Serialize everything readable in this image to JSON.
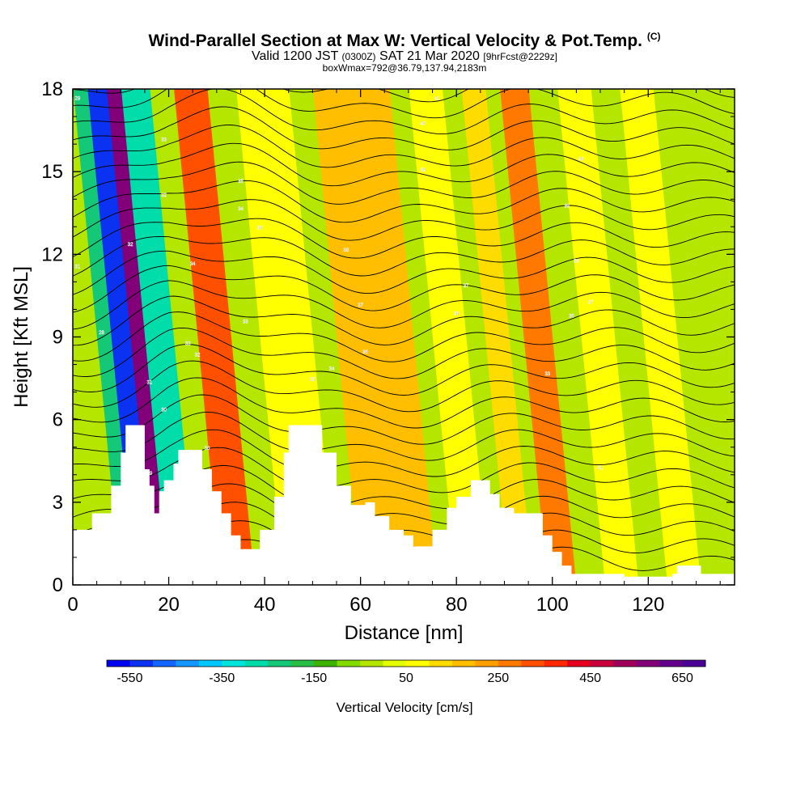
{
  "titles": {
    "main": "Wind-Parallel Section at Max W: Vertical Velocity & Pot.Temp.",
    "main_tag": "(C)",
    "valid_a": "Valid 1200 JST",
    "valid_b": "(0300Z)",
    "valid_c": "SAT 21 Mar 2020",
    "valid_d": "[9hrFcst@2229z]",
    "sub": "boxWmax=792@36.79,137.94,2183m"
  },
  "chart_data": {
    "type": "heatmap",
    "xlabel": "Distance [nm]",
    "ylabel": "Height [Kft MSL]",
    "xlim": [
      0,
      138
    ],
    "ylim": [
      0,
      18
    ],
    "x_ticks": [
      "0",
      "20",
      "40",
      "60",
      "80",
      "100",
      "120"
    ],
    "y_ticks": [
      "0",
      "3",
      "6",
      "9",
      "12",
      "15",
      "18"
    ],
    "colorbar": {
      "label": "Vertical Velocity [cm/s]",
      "min": -600,
      "max": 700,
      "step": 50,
      "tick_labels": [
        "-550",
        "-350",
        "-150",
        "50",
        "250",
        "450",
        "650"
      ],
      "colors": [
        "#0000f0",
        "#0a32f0",
        "#1464ff",
        "#1496ff",
        "#00c8ff",
        "#00e6dc",
        "#00dcaa",
        "#14c878",
        "#28be46",
        "#3cb400",
        "#82dc00",
        "#b4e600",
        "#e6ff00",
        "#ffff00",
        "#ffdc00",
        "#ffbe00",
        "#ffa000",
        "#ff7800",
        "#ff5000",
        "#ff2800",
        "#e6001e",
        "#c8003c",
        "#a0005a",
        "#820078",
        "#64008c",
        "#4b0096"
      ]
    },
    "terrain_kft": [
      [
        0,
        2.0
      ],
      [
        4,
        2.6
      ],
      [
        8,
        3.6
      ],
      [
        10,
        4.8
      ],
      [
        11,
        5.8
      ],
      [
        14,
        5.8
      ],
      [
        15,
        4.2
      ],
      [
        16,
        3.6
      ],
      [
        17,
        2.6
      ],
      [
        18,
        3.4
      ],
      [
        19,
        3.8
      ],
      [
        21,
        4.4
      ],
      [
        22,
        4.9
      ],
      [
        25,
        4.9
      ],
      [
        27,
        4.2
      ],
      [
        29,
        3.4
      ],
      [
        31,
        2.6
      ],
      [
        33,
        1.8
      ],
      [
        35,
        1.3
      ],
      [
        38,
        1.3
      ],
      [
        39,
        2.0
      ],
      [
        42,
        3.2
      ],
      [
        44,
        4.8
      ],
      [
        45,
        5.8
      ],
      [
        49,
        5.8
      ],
      [
        52,
        4.8
      ],
      [
        55,
        3.6
      ],
      [
        58,
        2.9
      ],
      [
        61,
        3.0
      ],
      [
        63,
        2.5
      ],
      [
        66,
        2.0
      ],
      [
        69,
        1.8
      ],
      [
        71,
        1.4
      ],
      [
        73,
        1.4
      ],
      [
        75,
        2.0
      ],
      [
        78,
        2.8
      ],
      [
        80,
        3.2
      ],
      [
        83,
        3.8
      ],
      [
        85,
        3.8
      ],
      [
        87,
        3.3
      ],
      [
        89,
        2.8
      ],
      [
        92,
        2.6
      ],
      [
        95,
        2.6
      ],
      [
        98,
        1.8
      ],
      [
        100,
        1.2
      ],
      [
        102,
        0.7
      ],
      [
        104,
        0.4
      ],
      [
        115,
        0.3
      ],
      [
        125,
        0.4
      ],
      [
        126,
        0.7
      ],
      [
        130,
        0.7
      ],
      [
        131,
        0.4
      ],
      [
        138,
        0.4
      ]
    ],
    "updraft_bands": [
      {
        "x0": 2,
        "x1": 19,
        "w": -50
      },
      {
        "x0": 10,
        "x1": 19,
        "w": -250
      },
      {
        "x0": 13,
        "x1": 18,
        "w": -550
      },
      {
        "x0": 17,
        "x1": 21,
        "w": 550
      },
      {
        "x0": 20,
        "x1": 26,
        "w": -300
      },
      {
        "x0": 31,
        "x1": 38,
        "w": 300
      },
      {
        "x0": 44,
        "x1": 55,
        "w": 50
      },
      {
        "x0": 60,
        "x1": 76,
        "w": 150
      },
      {
        "x0": 80,
        "x1": 87,
        "w": 50
      },
      {
        "x0": 91,
        "x1": 96,
        "w": 100
      },
      {
        "x0": 99,
        "x1": 105,
        "w": 250
      },
      {
        "x0": 111,
        "x1": 118,
        "w": 50
      },
      {
        "x0": 124,
        "x1": 131,
        "w": 50
      }
    ],
    "theta_contours_K": [
      {
        "value": "29",
        "x": 1,
        "y": 17.6
      },
      {
        "value": "31",
        "x": 1,
        "y": 11.5
      },
      {
        "value": "28",
        "x": 6,
        "y": 9.1
      },
      {
        "value": "32",
        "x": 12,
        "y": 12.3
      },
      {
        "value": "33",
        "x": 19,
        "y": 16.1
      },
      {
        "value": "32",
        "x": 19,
        "y": 14.1
      },
      {
        "value": "31",
        "x": 16,
        "y": 7.3
      },
      {
        "value": "30",
        "x": 19,
        "y": 6.3
      },
      {
        "value": "29",
        "x": 16,
        "y": 4.0
      },
      {
        "value": "34",
        "x": 25,
        "y": 11.6
      },
      {
        "value": "33",
        "x": 24,
        "y": 8.7
      },
      {
        "value": "32",
        "x": 26,
        "y": 8.3
      },
      {
        "value": "30",
        "x": 28,
        "y": 4.9
      },
      {
        "value": "35",
        "x": 35,
        "y": 14.6
      },
      {
        "value": "34",
        "x": 35,
        "y": 13.6
      },
      {
        "value": "33",
        "x": 36,
        "y": 9.5
      },
      {
        "value": "36",
        "x": 39,
        "y": 12.9
      },
      {
        "value": "38",
        "x": 57,
        "y": 12.1
      },
      {
        "value": "37",
        "x": 60,
        "y": 10.1
      },
      {
        "value": "36",
        "x": 61,
        "y": 8.4
      },
      {
        "value": "35",
        "x": 50,
        "y": 7.4
      },
      {
        "value": "34",
        "x": 54,
        "y": 7.8
      },
      {
        "value": "41",
        "x": 76,
        "y": 17.6
      },
      {
        "value": "40",
        "x": 73,
        "y": 16.7
      },
      {
        "value": "39",
        "x": 73,
        "y": 15.0
      },
      {
        "value": "37",
        "x": 82,
        "y": 10.8
      },
      {
        "value": "36",
        "x": 80,
        "y": 9.8
      },
      {
        "value": "40",
        "x": 106,
        "y": 15.4
      },
      {
        "value": "39",
        "x": 103,
        "y": 13.7
      },
      {
        "value": "38",
        "x": 105,
        "y": 11.7
      },
      {
        "value": "37",
        "x": 108,
        "y": 10.2
      },
      {
        "value": "36",
        "x": 104,
        "y": 9.7
      },
      {
        "value": "33",
        "x": 99,
        "y": 7.6
      },
      {
        "value": "31",
        "x": 110,
        "y": 4.2
      }
    ]
  }
}
